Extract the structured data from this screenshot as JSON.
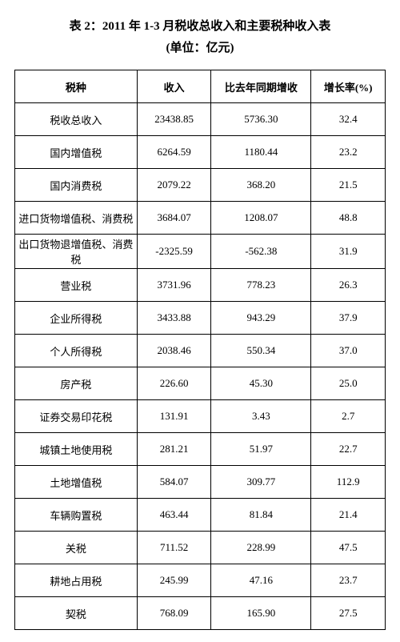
{
  "title_line1": "表 2：2011 年 1-3 月税收总收入和主要税种收入表",
  "title_line2": "(单位：亿元)",
  "table": {
    "columns": [
      "税种",
      "收入",
      "比去年同期增收",
      "增长率(%)"
    ],
    "rows": [
      [
        "税收总收入",
        "23438.85",
        "5736.30",
        "32.4"
      ],
      [
        "国内增值税",
        "6264.59",
        "1180.44",
        "23.2"
      ],
      [
        "国内消费税",
        "2079.22",
        "368.20",
        "21.5"
      ],
      [
        "进口货物增值税、消费税",
        "3684.07",
        "1208.07",
        "48.8"
      ],
      [
        "出口货物退增值税、消费税",
        "-2325.59",
        "-562.38",
        "31.9"
      ],
      [
        "营业税",
        "3731.96",
        "778.23",
        "26.3"
      ],
      [
        "企业所得税",
        "3433.88",
        "943.29",
        "37.9"
      ],
      [
        "个人所得税",
        "2038.46",
        "550.34",
        "37.0"
      ],
      [
        "房产税",
        "226.60",
        "45.30",
        "25.0"
      ],
      [
        "证券交易印花税",
        "131.91",
        "3.43",
        "2.7"
      ],
      [
        "城镇土地使用税",
        "281.21",
        "51.97",
        "22.7"
      ],
      [
        "土地增值税",
        "584.07",
        "309.77",
        "112.9"
      ],
      [
        "车辆购置税",
        "463.44",
        "81.84",
        "21.4"
      ],
      [
        "关税",
        "711.52",
        "228.99",
        "47.5"
      ],
      [
        "耕地占用税",
        "245.99",
        "47.16",
        "23.7"
      ],
      [
        "契税",
        "768.09",
        "165.90",
        "27.5"
      ]
    ]
  }
}
